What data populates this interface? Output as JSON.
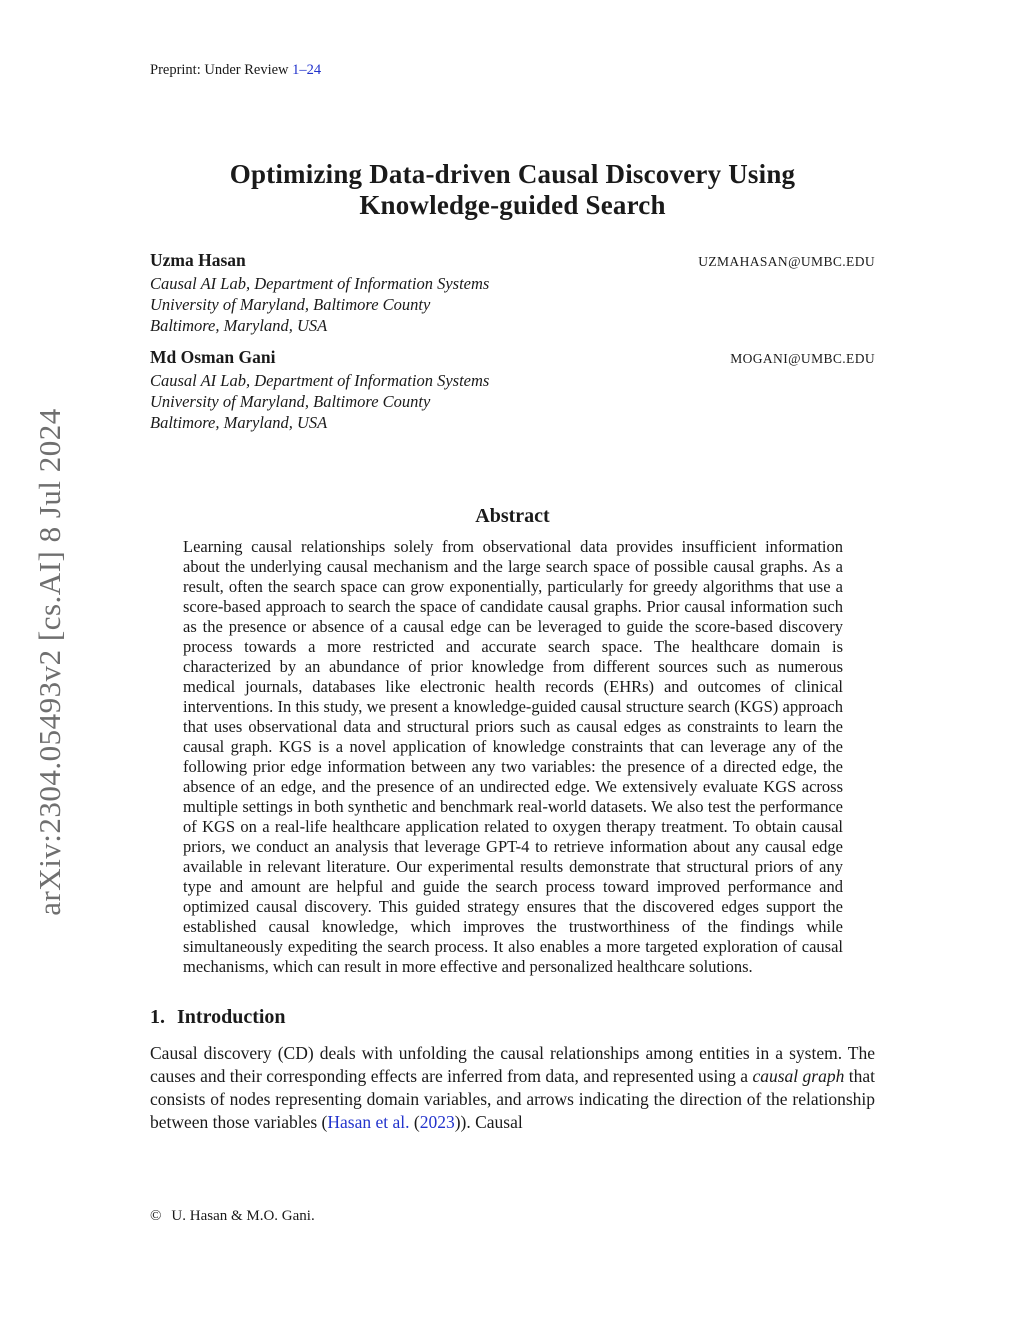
{
  "watermark": {
    "text": "arXiv:2304.05493v2  [cs.AI]  8 Jul 2024"
  },
  "header": {
    "text": "Preprint: Under Review ",
    "pages_link": "1–24"
  },
  "title": {
    "line1": "Optimizing Data-driven Causal Discovery Using",
    "line2": "Knowledge-guided Search"
  },
  "authors": [
    {
      "name": "Uzma Hasan",
      "email": "UZMAHASAN@UMBC.EDU",
      "affiliation": [
        "Causal AI Lab, Department of Information Systems",
        "University of Maryland, Baltimore County",
        "Baltimore, Maryland, USA"
      ]
    },
    {
      "name": "Md Osman Gani",
      "email": "MOGANI@UMBC.EDU",
      "affiliation": [
        "Causal AI Lab, Department of Information Systems",
        "University of Maryland, Baltimore County",
        "Baltimore, Maryland, USA"
      ]
    }
  ],
  "abstract": {
    "heading": "Abstract",
    "text": "Learning causal relationships solely from observational data provides insufficient information about the underlying causal mechanism and the large search space of possible causal graphs. As a result, often the search space can grow exponentially, particularly for greedy algorithms that use a score-based approach to search the space of candidate causal graphs. Prior causal information such as the presence or absence of a causal edge can be leveraged to guide the score-based discovery process towards a more restricted and accurate search space. The healthcare domain is characterized by an abundance of prior knowledge from different sources such as numerous medical journals, databases like electronic health records (EHRs) and outcomes of clinical interventions. In this study, we present a knowledge-guided causal structure search (KGS) approach that uses observational data and structural priors such as causal edges as constraints to learn the causal graph. KGS is a novel application of knowledge constraints that can leverage any of the following prior edge information between any two variables: the presence of a directed edge, the absence of an edge, and the presence of an undirected edge. We extensively evaluate KGS across multiple settings in both synthetic and benchmark real-world datasets. We also test the performance of KGS on a real-life healthcare application related to oxygen therapy treatment. To obtain causal priors, we conduct an analysis that leverage GPT-4 to retrieve information about any causal edge available in relevant literature. Our experimental results demonstrate that structural priors of any type and amount are helpful and guide the search process toward improved performance and optimized causal discovery. This guided strategy ensures that the discovered edges support the established causal knowledge, which improves the trustworthiness of the findings while simultaneously expediting the search process. It also enables a more targeted exploration of causal mechanisms, which can result in more effective and personalized healthcare solutions."
  },
  "introduction": {
    "number": "1.",
    "title": "Introduction",
    "p1": {
      "seg1": "Causal discovery (CD) deals with unfolding the causal relationships among entities in a system. The causes and their corresponding effects are inferred from data, and represented using a ",
      "seg2_italic": "causal graph",
      "seg3": " that consists of nodes representing domain variables, and arrows indicating the direction of the relationship between those variables (",
      "seg4_cite": "Hasan et al.",
      "seg5": " (",
      "seg6_cite": "2023",
      "seg7": ")). Causal"
    }
  },
  "footer": {
    "symbol": "©",
    "text": "U. Hasan & M.O. Gani."
  },
  "colors": {
    "link_blue": "#2233cc",
    "watermark_gray": "#6f6f6f",
    "text_black": "#1a1a1a"
  }
}
